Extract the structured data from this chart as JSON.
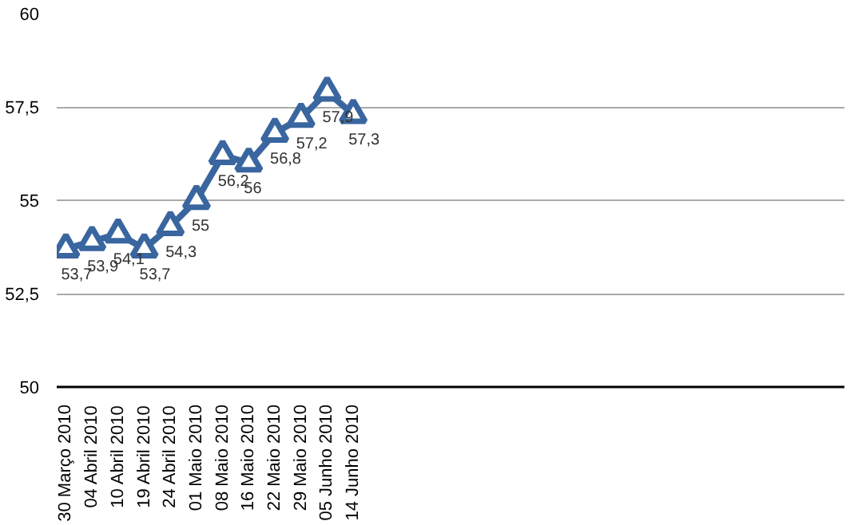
{
  "chart_data": {
    "type": "line",
    "categories": [
      "30 Março 2010",
      "04 Abril 2010",
      "10 Abril 2010",
      "19 Abril 2010",
      "24 Abril 2010",
      "01 Maio 2010",
      "08 Maio 2010",
      "16 Maio 2010",
      "22 Maio 2010",
      "29 Maio 2010",
      "05 Junho 2010",
      "14 Junho 2010",
      null,
      null,
      null,
      null,
      null,
      null,
      null,
      null,
      null,
      null,
      null,
      null,
      null,
      null,
      null,
      null,
      null,
      null
    ],
    "series": [
      {
        "color": "#3a66a0",
        "values": [
          53.7,
          53.9,
          54.1,
          53.7,
          54.3,
          55,
          56.2,
          56,
          56.8,
          57.2,
          57.9,
          57.3,
          null,
          null,
          null,
          null,
          null,
          null,
          null,
          null,
          null,
          null,
          null,
          null,
          null,
          null,
          null,
          null,
          null,
          null
        ],
        "value_labels": [
          "53,7",
          "53,9",
          "54,1",
          "53,7",
          "54,3",
          "55",
          "56,2",
          "56",
          "56,8",
          "57,2",
          "57,9",
          "57,3",
          null,
          null,
          null,
          null,
          null,
          null,
          null,
          null,
          null,
          null,
          null,
          null,
          null,
          null,
          null,
          null,
          null,
          null
        ]
      }
    ],
    "ylim": [
      50,
      60
    ],
    "yticks": [
      50,
      {
        "value": 52.5,
        "label": "52,5"
      },
      55,
      {
        "value": 57.5,
        "label": "57,5"
      },
      60
    ],
    "grid": "y",
    "marker": "triangle",
    "line_style": "solid"
  }
}
